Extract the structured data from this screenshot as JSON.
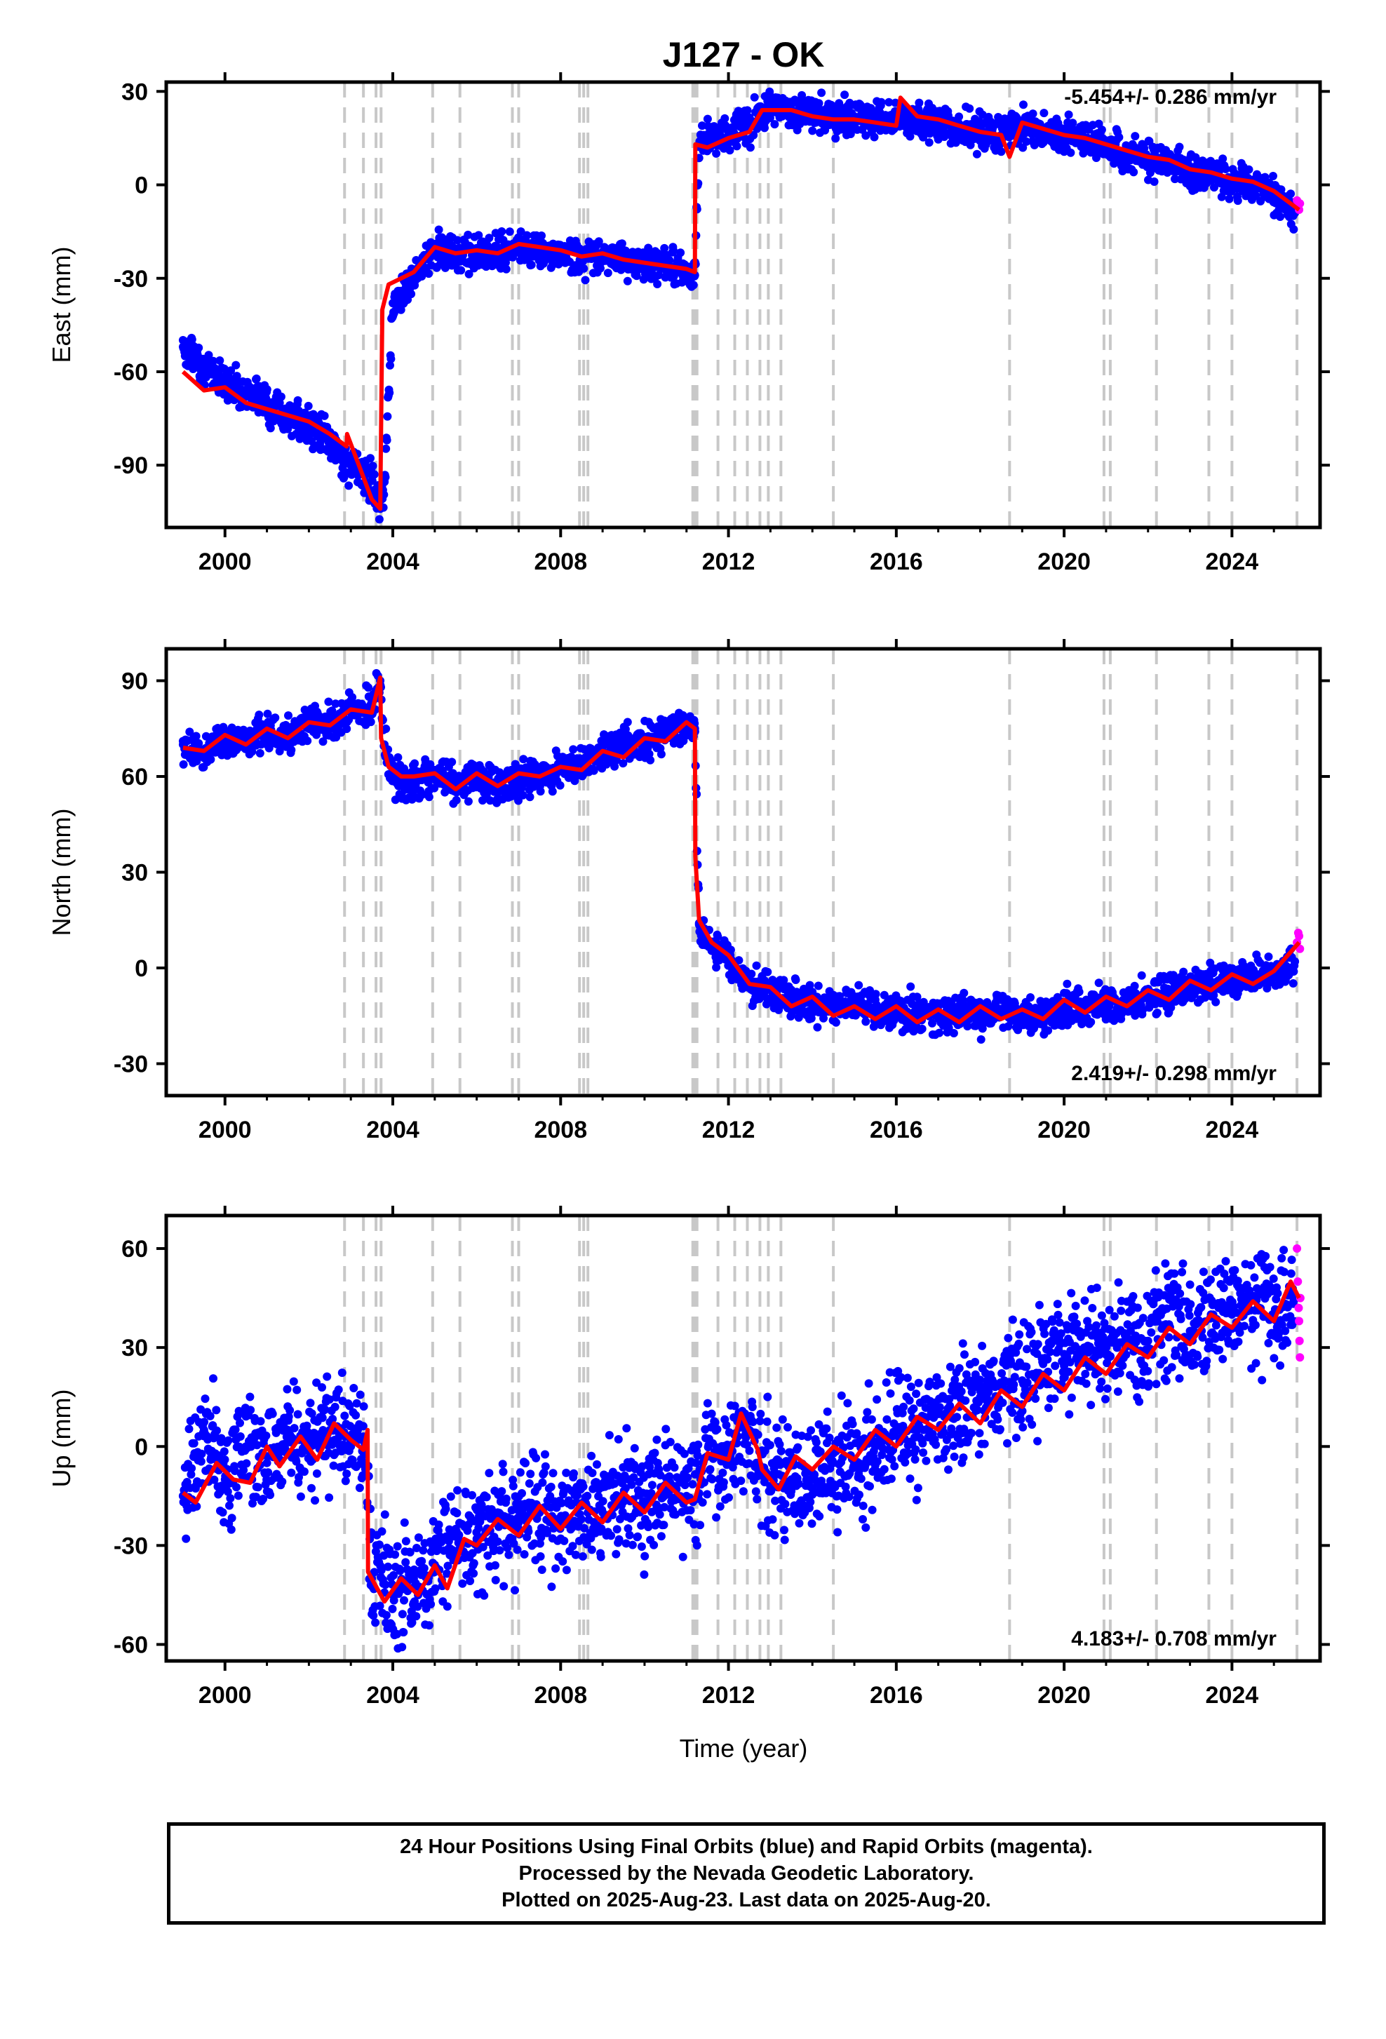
{
  "title": "J127 - OK",
  "xlabel": "Time (year)",
  "footer": {
    "line1": "24 Hour Positions Using Final Orbits (blue) and Rapid Orbits (magenta).",
    "line2": "Processed by the Nevada Geodetic Laboratory.",
    "line3": "Plotted on 2025-Aug-23. Last data on 2025-Aug-20."
  },
  "colors": {
    "final_points": "#0000ff",
    "rapid_points": "#ff00ff",
    "model_line": "#ff0000",
    "event_lines": "#c8c8c8"
  },
  "chart_data": [
    {
      "type": "scatter",
      "component": "East",
      "ylabel": "East (mm)",
      "rate": "-5.454+/- 0.286 mm/yr",
      "xlim": [
        1998.6,
        2026.1
      ],
      "ylim": [
        -110,
        33
      ],
      "xticks": [
        2000,
        2004,
        2008,
        2012,
        2016,
        2020,
        2024
      ],
      "yticks": [
        -90,
        -60,
        -30,
        0,
        30
      ],
      "grid": false,
      "series": [
        {
          "name": "Final Orbits",
          "color": "#0000ff",
          "x": [
            1999.0,
            1999.5,
            2000.0,
            2000.5,
            2001.0,
            2001.5,
            2002.0,
            2002.5,
            2003.0,
            2003.5,
            2003.7,
            2003.8,
            2004.0,
            2004.5,
            2005.0,
            2005.5,
            2006.0,
            2006.5,
            2007.0,
            2007.5,
            2008.0,
            2008.5,
            2009.0,
            2009.5,
            2010.0,
            2010.5,
            2011.0,
            2011.2,
            2011.3,
            2011.5,
            2012.0,
            2012.5,
            2013.0,
            2013.5,
            2014.0,
            2014.5,
            2015.0,
            2015.5,
            2016.0,
            2016.5,
            2017.0,
            2017.5,
            2018.0,
            2018.5,
            2019.0,
            2019.5,
            2020.0,
            2020.5,
            2021.0,
            2021.5,
            2022.0,
            2022.5,
            2023.0,
            2023.5,
            2024.0,
            2024.5,
            2025.0,
            2025.5
          ],
          "y": [
            -52,
            -58,
            -63,
            -66,
            -70,
            -74,
            -78,
            -83,
            -90,
            -95,
            -104,
            -95,
            -38,
            -30,
            -21,
            -22,
            -22,
            -23,
            -20,
            -21,
            -22,
            -23,
            -22,
            -24,
            -25,
            -26,
            -28,
            -29,
            13,
            14,
            17,
            19,
            25,
            24,
            23,
            22,
            22,
            21,
            22,
            21,
            20,
            18,
            17,
            16,
            20,
            17,
            16,
            15,
            13,
            10,
            9,
            7,
            5,
            3,
            1,
            0,
            -4,
            -9
          ]
        },
        {
          "name": "Rapid Orbits",
          "color": "#ff00ff",
          "x": [
            2025.55,
            2025.58,
            2025.6,
            2025.62
          ],
          "y": [
            -5,
            -7,
            -8,
            -6
          ]
        }
      ],
      "model": {
        "color": "#ff0000",
        "x": [
          1999.0,
          1999.5,
          2000.0,
          2000.5,
          2001.0,
          2001.5,
          2002.0,
          2002.5,
          2002.9,
          2002.91,
          2003.5,
          2003.7,
          2003.75,
          2003.9,
          2004.2,
          2004.5,
          2005.0,
          2005.5,
          2006.0,
          2006.5,
          2007.0,
          2007.5,
          2008.0,
          2008.5,
          2009.0,
          2009.5,
          2010.0,
          2010.5,
          2011.0,
          2011.2,
          2011.21,
          2011.5,
          2012.0,
          2012.5,
          2012.8,
          2013.0,
          2013.5,
          2014.0,
          2014.5,
          2015.0,
          2015.5,
          2016.0,
          2016.1,
          2016.5,
          2017.0,
          2017.5,
          2018.0,
          2018.5,
          2018.7,
          2019.0,
          2019.5,
          2020.0,
          2020.5,
          2021.0,
          2021.5,
          2022.0,
          2022.5,
          2023.0,
          2023.5,
          2024.0,
          2024.5,
          2025.0,
          2025.6
        ],
        "y": [
          -60,
          -66,
          -65,
          -70,
          -72,
          -74,
          -76,
          -80,
          -84,
          -80,
          -101,
          -104,
          -40,
          -32,
          -30,
          -28,
          -20,
          -22,
          -21,
          -22,
          -19,
          -20,
          -21,
          -23,
          -22,
          -24,
          -25,
          -26,
          -27,
          -28,
          13,
          12,
          15,
          17,
          24,
          24,
          24,
          22,
          21,
          21,
          20,
          19,
          28,
          22,
          21,
          19,
          17,
          16,
          9,
          20,
          18,
          16,
          15,
          13,
          11,
          9,
          8,
          5,
          4,
          2,
          1,
          -2,
          -8
        ]
      }
    },
    {
      "type": "scatter",
      "component": "North",
      "ylabel": "North (mm)",
      "rate": "2.419+/- 0.298 mm/yr",
      "xlim": [
        1998.6,
        2026.1
      ],
      "ylim": [
        -40,
        100
      ],
      "xticks": [
        2000,
        2004,
        2008,
        2012,
        2016,
        2020,
        2024
      ],
      "yticks": [
        -30,
        0,
        30,
        60,
        90
      ],
      "grid": false,
      "series": [
        {
          "name": "Final Orbits",
          "color": "#0000ff",
          "x": [
            1999.0,
            1999.5,
            2000.0,
            2000.5,
            2001.0,
            2001.5,
            2002.0,
            2002.5,
            2003.0,
            2003.5,
            2003.7,
            2003.8,
            2004.0,
            2004.5,
            2005.0,
            2005.5,
            2006.0,
            2006.5,
            2007.0,
            2007.5,
            2008.0,
            2008.5,
            2009.0,
            2009.5,
            2010.0,
            2010.5,
            2011.0,
            2011.2,
            2011.3,
            2011.5,
            2012.0,
            2012.5,
            2013.0,
            2013.5,
            2014.0,
            2014.5,
            2015.0,
            2015.5,
            2016.0,
            2016.5,
            2017.0,
            2017.5,
            2018.0,
            2018.5,
            2019.0,
            2019.5,
            2020.0,
            2020.5,
            2021.0,
            2021.5,
            2022.0,
            2022.5,
            2023.0,
            2023.5,
            2024.0,
            2024.5,
            2025.0,
            2025.5
          ],
          "y": [
            70,
            67,
            72,
            70,
            74,
            72,
            77,
            76,
            80,
            82,
            90,
            70,
            60,
            58,
            62,
            57,
            60,
            57,
            59,
            60,
            62,
            64,
            68,
            70,
            71,
            73,
            76,
            75,
            14,
            8,
            3,
            -5,
            -7,
            -10,
            -12,
            -13,
            -12,
            -14,
            -15,
            -13,
            -15,
            -14,
            -15,
            -13,
            -15,
            -15,
            -13,
            -12,
            -12,
            -11,
            -9,
            -8,
            -6,
            -5,
            -4,
            -3,
            -2,
            2
          ]
        },
        {
          "name": "Rapid Orbits",
          "color": "#ff00ff",
          "x": [
            2025.55,
            2025.58,
            2025.6,
            2025.62
          ],
          "y": [
            8,
            11,
            10,
            6
          ]
        }
      ],
      "model": {
        "color": "#ff0000",
        "x": [
          1999.0,
          1999.5,
          2000.0,
          2000.5,
          2001.0,
          2001.5,
          2002.0,
          2002.5,
          2003.0,
          2003.5,
          2003.7,
          2003.72,
          2003.9,
          2004.2,
          2004.5,
          2005.0,
          2005.5,
          2006.0,
          2006.5,
          2007.0,
          2007.5,
          2008.0,
          2008.5,
          2009.0,
          2009.5,
          2010.0,
          2010.5,
          2011.0,
          2011.2,
          2011.21,
          2011.3,
          2011.6,
          2012.0,
          2012.5,
          2013.0,
          2013.5,
          2014.0,
          2014.5,
          2015.0,
          2015.5,
          2016.0,
          2016.5,
          2017.0,
          2017.5,
          2018.0,
          2018.5,
          2019.0,
          2019.5,
          2020.0,
          2020.5,
          2021.0,
          2021.5,
          2022.0,
          2022.5,
          2023.0,
          2023.5,
          2024.0,
          2024.5,
          2025.0,
          2025.6
        ],
        "y": [
          69,
          68,
          73,
          70,
          75,
          72,
          77,
          76,
          81,
          80,
          91,
          72,
          63,
          60,
          60,
          61,
          56,
          61,
          57,
          61,
          60,
          63,
          62,
          68,
          66,
          72,
          71,
          77,
          75,
          35,
          15,
          8,
          4,
          -5,
          -6,
          -12,
          -9,
          -15,
          -12,
          -16,
          -12,
          -17,
          -13,
          -17,
          -12,
          -16,
          -13,
          -16,
          -10,
          -14,
          -9,
          -12,
          -7,
          -10,
          -4,
          -7,
          -2,
          -5,
          -1,
          8
        ]
      }
    },
    {
      "type": "scatter",
      "component": "Up",
      "ylabel": "Up (mm)",
      "rate": "4.183+/- 0.708 mm/yr",
      "xlim": [
        1998.6,
        2026.1
      ],
      "ylim": [
        -65,
        70
      ],
      "xticks": [
        2000,
        2004,
        2008,
        2012,
        2016,
        2020,
        2024
      ],
      "yticks": [
        -60,
        -30,
        0,
        30,
        60
      ],
      "grid": false,
      "series": [
        {
          "name": "Final Orbits",
          "color": "#0000ff",
          "x": [
            1999.0,
            1999.5,
            2000.0,
            2000.5,
            2001.0,
            2001.5,
            2002.0,
            2002.5,
            2003.0,
            2003.3,
            2003.5,
            2004.0,
            2004.5,
            2005.0,
            2005.5,
            2006.0,
            2006.5,
            2007.0,
            2007.5,
            2008.0,
            2008.5,
            2009.0,
            2009.5,
            2010.0,
            2010.5,
            2011.0,
            2011.5,
            2012.0,
            2012.5,
            2013.0,
            2013.5,
            2014.0,
            2014.5,
            2015.0,
            2015.5,
            2016.0,
            2016.5,
            2017.0,
            2017.5,
            2018.0,
            2018.5,
            2019.0,
            2019.5,
            2020.0,
            2020.5,
            2021.0,
            2021.5,
            2022.0,
            2022.5,
            2023.0,
            2023.5,
            2024.0,
            2024.5,
            2025.0,
            2025.5
          ],
          "y": [
            -15,
            5,
            -10,
            0,
            -5,
            5,
            0,
            5,
            0,
            3,
            -40,
            -45,
            -40,
            -38,
            -25,
            -28,
            -20,
            -25,
            -20,
            -22,
            -18,
            -20,
            -15,
            -18,
            -12,
            -15,
            -3,
            -2,
            5,
            -12,
            -10,
            -8,
            -5,
            -5,
            0,
            5,
            5,
            10,
            12,
            15,
            18,
            20,
            25,
            28,
            30,
            30,
            33,
            32,
            37,
            35,
            40,
            40,
            45,
            40,
            45
          ]
        },
        {
          "name": "Rapid Orbits",
          "color": "#ff00ff",
          "x": [
            2025.55,
            2025.57,
            2025.59,
            2025.6,
            2025.61,
            2025.62,
            2025.63
          ],
          "y": [
            60,
            50,
            42,
            38,
            32,
            27,
            45
          ]
        }
      ],
      "model": {
        "color": "#ff0000",
        "x": [
          1999.0,
          1999.3,
          1999.8,
          2000.2,
          2000.6,
          2001.0,
          2001.3,
          2001.8,
          2002.2,
          2002.6,
          2003.0,
          2003.3,
          2003.4,
          2003.41,
          2003.8,
          2004.2,
          2004.6,
          2005.0,
          2005.3,
          2005.7,
          2006.0,
          2006.5,
          2007.0,
          2007.5,
          2008.0,
          2008.5,
          2009.0,
          2009.5,
          2010.0,
          2010.5,
          2011.0,
          2011.2,
          2011.5,
          2012.0,
          2012.3,
          2012.7,
          2012.8,
          2013.2,
          2013.6,
          2014.0,
          2014.5,
          2015.0,
          2015.5,
          2016.0,
          2016.5,
          2017.0,
          2017.5,
          2018.0,
          2018.5,
          2019.0,
          2019.5,
          2020.0,
          2020.5,
          2021.0,
          2021.5,
          2022.0,
          2022.5,
          2023.0,
          2023.5,
          2024.0,
          2024.5,
          2025.0,
          2025.4,
          2025.6
        ],
        "y": [
          -14,
          -17,
          -5,
          -10,
          -11,
          0,
          -6,
          3,
          -4,
          7,
          2,
          -1,
          5,
          -38,
          -47,
          -40,
          -45,
          -36,
          -43,
          -28,
          -30,
          -22,
          -27,
          -18,
          -25,
          -17,
          -23,
          -14,
          -20,
          -11,
          -17,
          -16,
          -2,
          -4,
          10,
          -1,
          -7,
          -13,
          -3,
          -7,
          0,
          -4,
          5,
          0,
          9,
          5,
          13,
          7,
          17,
          12,
          22,
          17,
          27,
          22,
          31,
          27,
          36,
          31,
          40,
          36,
          44,
          38,
          50,
          45
        ]
      }
    }
  ],
  "events": [
    2002.85,
    2003.3,
    2003.6,
    2003.72,
    2004.95,
    2005.6,
    2006.85,
    2007.0,
    2008.45,
    2008.55,
    2008.65,
    2011.15,
    2011.2,
    2011.25,
    2011.75,
    2012.15,
    2012.45,
    2012.75,
    2012.95,
    2013.25,
    2014.5,
    2018.7,
    2020.95,
    2021.1,
    2022.2,
    2023.45,
    2024.0,
    2025.55
  ]
}
